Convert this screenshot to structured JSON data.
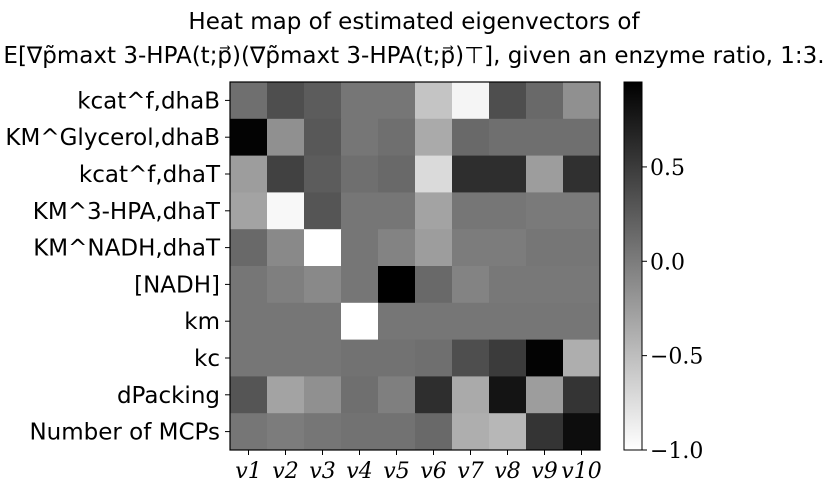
{
  "chart_data": {
    "type": "heatmap",
    "title": [
      "Heat map of estimated eigenvectors of",
      "E[∇p̃maxt 3-HPA(t;p⃗)(∇p̃maxt 3-HPA(t;p⃗)⊤], given an enzyme ratio, 1:3."
    ],
    "row_labels": [
      "kcat^f,dhaB",
      "KM^Glycerol,dhaB",
      "kcat^f,dhaT",
      "KM^3-HPA,dhaT",
      "KM^NADH,dhaT",
      "[NADH]",
      "km",
      "kc",
      "dPacking",
      "Number of MCPs"
    ],
    "col_labels": [
      "v1",
      "v2",
      "v3",
      "v4",
      "v5",
      "v6",
      "v7",
      "v8",
      "v9",
      "v10"
    ],
    "colorbar": {
      "min": -1.0,
      "max": 0.95,
      "ticks": [
        -1.0,
        -0.5,
        0.0,
        0.5
      ],
      "tick_labels": [
        "−1.0",
        "−0.5",
        "0.0",
        "0.5"
      ],
      "cmap": "gray_r"
    },
    "values": [
      [
        0.1,
        0.35,
        0.25,
        0.05,
        0.05,
        -0.55,
        -0.92,
        0.35,
        0.15,
        -0.15
      ],
      [
        0.93,
        -0.15,
        0.28,
        0.05,
        0.1,
        -0.35,
        0.15,
        0.1,
        0.1,
        0.1
      ],
      [
        -0.25,
        0.45,
        0.25,
        0.1,
        0.15,
        -0.72,
        0.6,
        0.6,
        -0.25,
        0.58
      ],
      [
        -0.3,
        -0.95,
        0.3,
        0.05,
        0.05,
        -0.3,
        0.05,
        0.05,
        0.02,
        0.02
      ],
      [
        0.15,
        -0.1,
        -1.0,
        0.05,
        -0.05,
        -0.25,
        0.0,
        0.0,
        0.05,
        0.05
      ],
      [
        0.05,
        -0.02,
        -0.1,
        0.05,
        0.95,
        0.15,
        -0.05,
        0.03,
        0.03,
        0.03
      ],
      [
        0.05,
        0.05,
        0.05,
        -1.0,
        0.05,
        0.05,
        0.05,
        0.05,
        0.05,
        0.05
      ],
      [
        0.05,
        0.05,
        0.05,
        0.08,
        0.08,
        0.1,
        0.35,
        0.5,
        0.93,
        -0.38
      ],
      [
        0.3,
        -0.3,
        -0.15,
        0.1,
        -0.02,
        0.6,
        -0.35,
        0.8,
        -0.25,
        0.55
      ],
      [
        0.05,
        0.0,
        0.05,
        0.08,
        0.08,
        0.15,
        -0.38,
        -0.45,
        0.55,
        0.85
      ]
    ]
  }
}
